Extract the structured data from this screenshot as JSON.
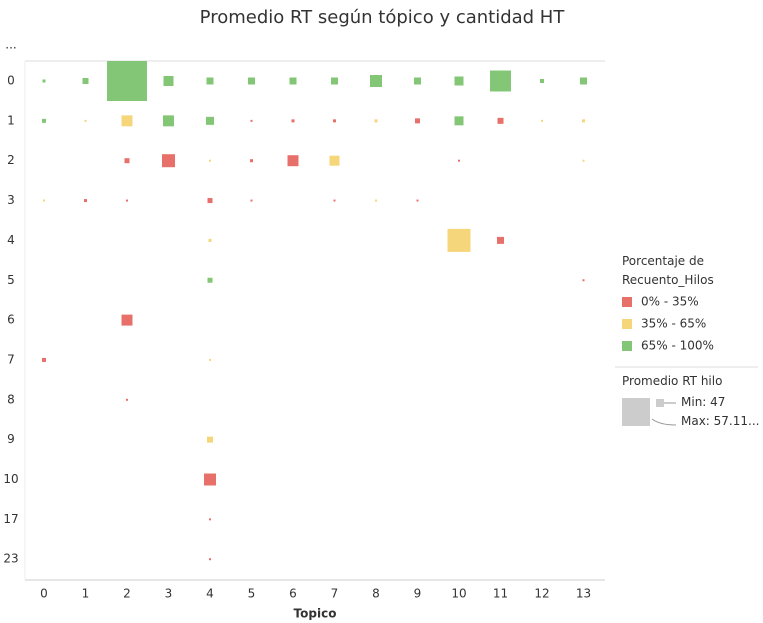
{
  "chart_data": {
    "type": "square-matrix",
    "title": "Promedio RT según tópico y cantidad HT",
    "x_label": "Topico",
    "x_categories": [
      "0",
      "1",
      "2",
      "3",
      "4",
      "5",
      "6",
      "7",
      "8",
      "9",
      "10",
      "11",
      "12",
      "13"
    ],
    "y_categories": [
      "...",
      "0",
      "1",
      "2",
      "3",
      "4",
      "5",
      "6",
      "7",
      "8",
      "9",
      "10",
      "17",
      "23"
    ],
    "legend_title": "Porcentaje de Recuento_Hilos",
    "series": [
      {
        "name": "0% - 35%",
        "color": "#e8706b",
        "x": [
          5,
          6,
          7,
          9,
          11,
          2,
          3,
          5,
          6,
          10,
          1,
          2,
          4,
          5,
          7,
          9,
          11,
          13,
          2,
          0,
          2,
          4,
          4,
          4
        ],
        "y": [
          2,
          2,
          2,
          2,
          2,
          3,
          3,
          3,
          3,
          3,
          4,
          4,
          4,
          4,
          4,
          4,
          5,
          6,
          7,
          8,
          9,
          11,
          12,
          13
        ],
        "values": [
          47,
          47.27,
          47.27,
          47.8,
          48.06,
          47.8,
          49.93,
          47.27,
          49.39,
          47,
          47.27,
          47,
          47.8,
          47,
          47,
          47,
          48.33,
          47,
          49.39,
          47.53,
          47,
          49.66,
          47,
          47
        ]
      },
      {
        "name": "35% - 65%",
        "color": "#f5d67a",
        "x": [
          1,
          2,
          8,
          12,
          13,
          4,
          7,
          13,
          0,
          8,
          4,
          10,
          4,
          4
        ],
        "y": [
          2,
          2,
          2,
          2,
          2,
          3,
          3,
          3,
          4,
          4,
          5,
          5,
          8,
          10
        ],
        "values": [
          47,
          49.39,
          47.27,
          47,
          47.27,
          47,
          49.13,
          47,
          47,
          47,
          47.27,
          52.59,
          47,
          48.06
        ]
      },
      {
        "name": "65% - 100%",
        "color": "#83c776",
        "x": [
          0,
          1,
          2,
          3,
          4,
          5,
          6,
          7,
          8,
          9,
          10,
          11,
          12,
          13,
          0,
          3,
          4,
          10,
          4
        ],
        "y": [
          1,
          1,
          1,
          1,
          1,
          1,
          1,
          1,
          1,
          1,
          1,
          1,
          1,
          1,
          2,
          2,
          2,
          2,
          6
        ],
        "values": [
          47.27,
          48.06,
          57.11,
          49.13,
          48.33,
          48.33,
          48.33,
          48.33,
          49.66,
          48.33,
          48.86,
          52.05,
          47.53,
          48.33,
          47.53,
          49.39,
          48.6,
          48.86,
          47.8
        ]
      }
    ],
    "size_legend": {
      "title": "Promedio RT hilo",
      "min": {
        "value": 47,
        "label": "Min: 47"
      },
      "max": {
        "value": 57.11,
        "label": "Max: 57.11..."
      }
    }
  }
}
